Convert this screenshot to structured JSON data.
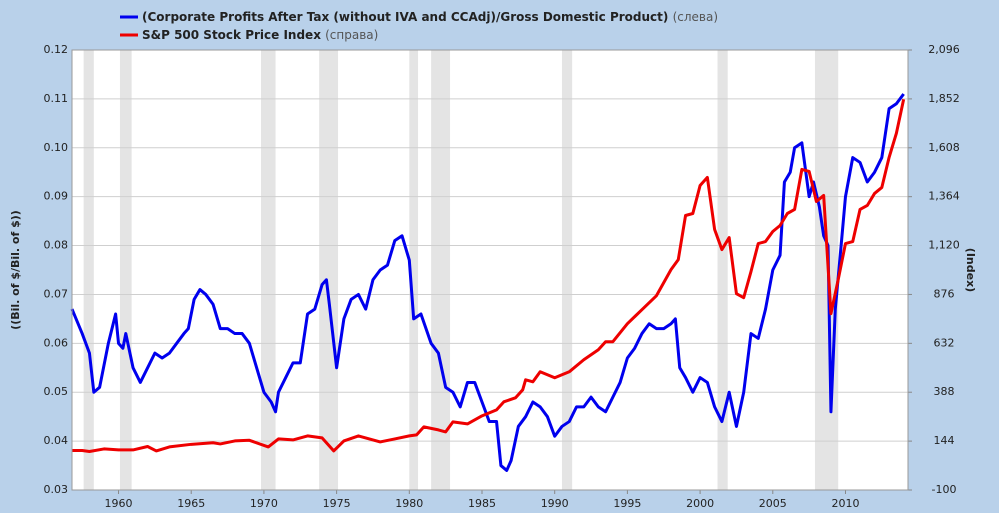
{
  "chart_data": {
    "type": "line",
    "y_label": "((Bil. of $/Bil. of $))",
    "y2_label": "(Index)",
    "xlim": [
      1956.8,
      2014.3
    ],
    "xticks": [
      1960,
      1965,
      1970,
      1975,
      1980,
      1985,
      1990,
      1995,
      2000,
      2005,
      2010
    ],
    "ylim": [
      0.03,
      0.12
    ],
    "yticks": [
      0.03,
      0.04,
      0.05,
      0.06,
      0.07,
      0.08,
      0.09,
      {
        "value": 0.1,
        "label": "0.10"
      },
      0.11,
      0.12
    ],
    "y2lim": [
      -100,
      2096
    ],
    "y2ticks": [
      -100,
      144,
      388,
      632,
      876,
      {
        "value": 1120,
        "label": "1,120"
      },
      {
        "value": 1364,
        "label": "1,364"
      },
      {
        "value": 1608,
        "label": "1,608"
      },
      {
        "value": 1852,
        "label": "1,852"
      },
      {
        "value": 2096,
        "label": "2,096"
      }
    ],
    "grid": true,
    "recessions": [
      [
        1957.6,
        1958.3
      ],
      [
        1960.1,
        1960.9
      ],
      [
        1969.8,
        1970.8
      ],
      [
        1973.8,
        1975.1
      ],
      [
        1980.0,
        1980.6
      ],
      [
        1981.5,
        1982.8
      ],
      [
        1990.5,
        1991.2
      ],
      [
        2001.2,
        2001.9
      ],
      [
        2007.9,
        2009.5
      ]
    ],
    "series": [
      {
        "name": "(Corporate Profits After Tax (without IVA and CCAdj)/Gross Domestic Product)",
        "axis_note": "(слева)",
        "color": "#0000ee",
        "axis": "y",
        "x": [
          1956.8,
          1957.5,
          1958.0,
          1958.3,
          1958.7,
          1959.3,
          1959.8,
          1960.0,
          1960.3,
          1960.5,
          1961.0,
          1961.5,
          1962.0,
          1962.5,
          1963.0,
          1963.5,
          1964.0,
          1964.5,
          1964.8,
          1965.2,
          1965.6,
          1966.0,
          1966.5,
          1967.0,
          1967.5,
          1968.0,
          1968.5,
          1969.0,
          1969.5,
          1970.0,
          1970.5,
          1970.8,
          1971.0,
          1971.5,
          1972.0,
          1972.5,
          1973.0,
          1973.5,
          1974.0,
          1974.3,
          1974.5,
          1975.0,
          1975.5,
          1976.0,
          1976.5,
          1977.0,
          1977.5,
          1978.0,
          1978.5,
          1979.0,
          1979.5,
          1980.0,
          1980.3,
          1980.8,
          1981.5,
          1982.0,
          1982.5,
          1983.0,
          1983.5,
          1984.0,
          1984.5,
          1985.0,
          1985.5,
          1986.0,
          1986.3,
          1986.7,
          1987.0,
          1987.5,
          1988.0,
          1988.5,
          1989.0,
          1989.5,
          1990.0,
          1990.5,
          1991.0,
          1991.5,
          1992.0,
          1992.5,
          1993.0,
          1993.5,
          1994.0,
          1994.5,
          1995.0,
          1995.5,
          1996.0,
          1996.5,
          1997.0,
          1997.5,
          1998.0,
          1998.3,
          1998.6,
          1999.0,
          1999.5,
          2000.0,
          2000.5,
          2001.0,
          2001.5,
          2002.0,
          2002.5,
          2003.0,
          2003.5,
          2004.0,
          2004.5,
          2005.0,
          2005.5,
          2005.8,
          2006.2,
          2006.5,
          2007.0,
          2007.5,
          2007.8,
          2008.2,
          2008.5,
          2008.8,
          2009.0,
          2009.3,
          2009.7,
          2010.0,
          2010.5,
          2011.0,
          2011.5,
          2012.0,
          2012.5,
          2013.0,
          2013.5,
          2014.0
        ],
        "values": [
          0.067,
          0.062,
          0.058,
          0.05,
          0.051,
          0.06,
          0.066,
          0.06,
          0.059,
          0.062,
          0.055,
          0.052,
          0.055,
          0.058,
          0.057,
          0.058,
          0.06,
          0.062,
          0.063,
          0.069,
          0.071,
          0.07,
          0.068,
          0.063,
          0.063,
          0.062,
          0.062,
          0.06,
          0.055,
          0.05,
          0.048,
          0.046,
          0.05,
          0.053,
          0.056,
          0.056,
          0.066,
          0.067,
          0.072,
          0.073,
          0.068,
          0.055,
          0.065,
          0.069,
          0.07,
          0.067,
          0.073,
          0.075,
          0.076,
          0.081,
          0.082,
          0.077,
          0.065,
          0.066,
          0.06,
          0.058,
          0.051,
          0.05,
          0.047,
          0.052,
          0.052,
          0.048,
          0.044,
          0.044,
          0.035,
          0.034,
          0.036,
          0.043,
          0.045,
          0.048,
          0.047,
          0.045,
          0.041,
          0.043,
          0.044,
          0.047,
          0.047,
          0.049,
          0.047,
          0.046,
          0.049,
          0.052,
          0.057,
          0.059,
          0.062,
          0.064,
          0.063,
          0.063,
          0.064,
          0.065,
          0.055,
          0.053,
          0.05,
          0.053,
          0.052,
          0.047,
          0.044,
          0.05,
          0.043,
          0.05,
          0.062,
          0.061,
          0.067,
          0.075,
          0.078,
          0.093,
          0.095,
          0.1,
          0.101,
          0.09,
          0.093,
          0.088,
          0.082,
          0.08,
          0.046,
          0.067,
          0.08,
          0.09,
          0.098,
          0.097,
          0.093,
          0.095,
          0.098,
          0.108,
          0.109,
          0.111
        ]
      },
      {
        "name": "S&P 500 Stock Price Index",
        "axis_note": "(справа)",
        "color": "#ee0000",
        "axis": "y2",
        "x": [
          1956.8,
          1957.5,
          1958.0,
          1959.0,
          1960.0,
          1961.0,
          1962.0,
          1962.6,
          1963.5,
          1965.0,
          1966.5,
          1967.0,
          1968.0,
          1969.0,
          1970.3,
          1971.0,
          1972.0,
          1973.0,
          1974.0,
          1974.8,
          1975.5,
          1976.5,
          1977.5,
          1978.0,
          1979.0,
          1980.0,
          1980.5,
          1981.0,
          1982.0,
          1982.5,
          1983.0,
          1984.0,
          1985.0,
          1986.0,
          1986.5,
          1987.3,
          1987.8,
          1988.0,
          1988.5,
          1989.0,
          1990.0,
          1991.0,
          1992.0,
          1993.0,
          1993.5,
          1994.0,
          1995.0,
          1996.0,
          1997.0,
          1998.0,
          1998.5,
          1999.0,
          1999.5,
          2000.0,
          2000.5,
          2001.0,
          2001.5,
          2002.0,
          2002.5,
          2003.0,
          2003.5,
          2004.0,
          2004.5,
          2005.0,
          2005.5,
          2006.0,
          2006.5,
          2007.0,
          2007.5,
          2008.0,
          2008.5,
          2009.0,
          2009.5,
          2010.0,
          2010.5,
          2011.0,
          2011.5,
          2012.0,
          2012.5,
          2013.0,
          2013.5,
          2014.0
        ],
        "values": [
          97,
          97,
          92,
          105,
          100,
          100,
          117,
          95,
          115,
          128,
          136,
          130,
          145,
          148,
          115,
          155,
          150,
          170,
          160,
          95,
          145,
          170,
          150,
          140,
          155,
          170,
          175,
          215,
          200,
          190,
          240,
          230,
          270,
          300,
          340,
          360,
          400,
          450,
          440,
          490,
          460,
          490,
          550,
          600,
          640,
          640,
          730,
          800,
          870,
          1000,
          1050,
          1270,
          1280,
          1420,
          1460,
          1200,
          1100,
          1160,
          880,
          860,
          990,
          1130,
          1140,
          1190,
          1220,
          1280,
          1300,
          1500,
          1490,
          1340,
          1370,
          780,
          950,
          1130,
          1140,
          1300,
          1320,
          1380,
          1410,
          1560,
          1680,
          1850
        ]
      }
    ]
  }
}
